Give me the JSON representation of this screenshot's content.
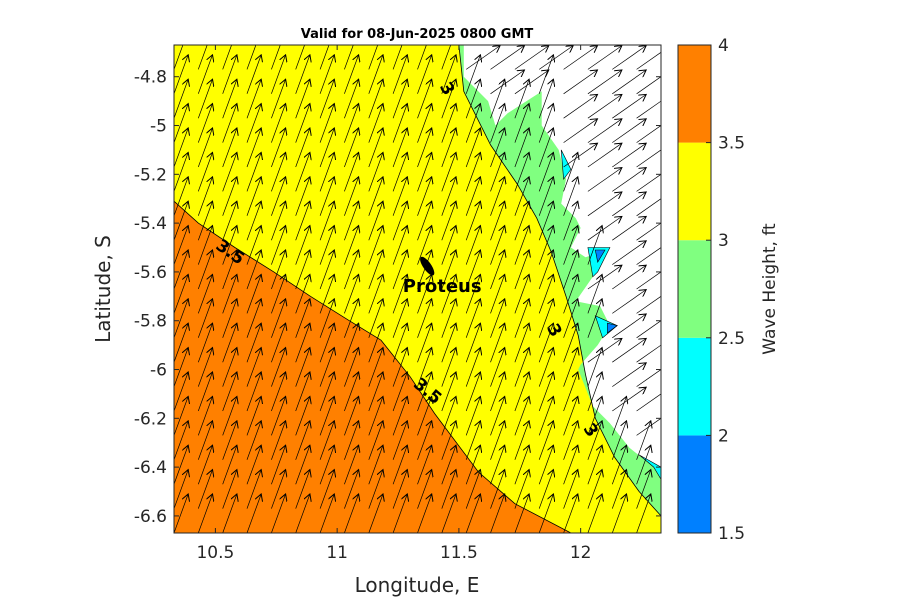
{
  "chart_data": {
    "type": "heatmap",
    "title": "Valid for 08-Jun-2025 0800 GMT",
    "xlabel": "Longitude, E",
    "ylabel": "Latitude, S",
    "xlim": [
      10.33,
      12.33
    ],
    "ylim": [
      -6.67,
      -4.67
    ],
    "x_ticks": [
      10.5,
      11,
      11.5,
      12
    ],
    "x_tick_labels": [
      "10.5",
      "11",
      "11.5",
      "12"
    ],
    "y_ticks": [
      -4.8,
      -5,
      -5.2,
      -5.4,
      -5.6,
      -5.8,
      -6,
      -6.2,
      -6.4,
      -6.6
    ],
    "y_tick_labels": [
      "-4.8",
      "-5",
      "-5.2",
      "-5.4",
      "-5.6",
      "-5.8",
      "-6",
      "-6.2",
      "-6.4",
      "-6.6"
    ],
    "colorbar": {
      "title": "Wave Height, ft",
      "levels": [
        1.5,
        2,
        2.5,
        3,
        3.5,
        4
      ],
      "tick_labels": [
        "1.5",
        "2",
        "2.5",
        "3",
        "3.5",
        "4"
      ],
      "colors": [
        "#0080ff",
        "#00ffff",
        "#80ff80",
        "#ffff00",
        "#ff8000"
      ]
    },
    "contours": [
      {
        "level": 3.5,
        "label": "3.5"
      },
      {
        "level": 3,
        "label": "3"
      }
    ],
    "contour_labels": [
      {
        "text": "3.5",
        "lon": 10.56,
        "lat": -5.52,
        "angle": 35
      },
      {
        "text": "3.5",
        "lon": 11.37,
        "lat": -6.09,
        "angle": 40
      },
      {
        "text": "3",
        "lon": 11.45,
        "lat": -4.85,
        "angle": 60
      },
      {
        "text": "3",
        "lon": 11.89,
        "lat": -5.84,
        "angle": 60
      },
      {
        "text": "3",
        "lon": 12.04,
        "lat": -6.25,
        "angle": 55
      }
    ],
    "station": {
      "name": "Proteus",
      "lon": 11.37,
      "lat": -5.65
    },
    "regions": [
      {
        "level_range": [
          3,
          3.5
        ],
        "color": "#ffff00",
        "boundary": [
          [
            10.33,
            -4.67
          ],
          [
            11.5,
            -4.67
          ],
          [
            11.52,
            -4.86
          ],
          [
            11.63,
            -5.08
          ],
          [
            11.74,
            -5.24
          ],
          [
            11.82,
            -5.38
          ],
          [
            11.88,
            -5.52
          ],
          [
            11.94,
            -5.7
          ],
          [
            11.99,
            -5.86
          ],
          [
            12.02,
            -6.02
          ],
          [
            12.06,
            -6.2
          ],
          [
            12.14,
            -6.36
          ],
          [
            12.24,
            -6.5
          ],
          [
            12.33,
            -6.6
          ],
          [
            12.33,
            -6.67
          ],
          [
            11.96,
            -6.67
          ],
          [
            11.73,
            -6.55
          ],
          [
            11.58,
            -6.42
          ],
          [
            11.4,
            -6.18
          ],
          [
            11.3,
            -6.03
          ],
          [
            11.18,
            -5.88
          ],
          [
            11.05,
            -5.8
          ],
          [
            10.89,
            -5.7
          ],
          [
            10.74,
            -5.6
          ],
          [
            10.58,
            -5.5
          ],
          [
            10.43,
            -5.4
          ],
          [
            10.33,
            -5.31
          ]
        ]
      },
      {
        "level_range": [
          3.5,
          4
        ],
        "color": "#ff8000",
        "boundary": [
          [
            10.33,
            -5.31
          ],
          [
            10.43,
            -5.4
          ],
          [
            10.58,
            -5.5
          ],
          [
            10.74,
            -5.6
          ],
          [
            10.89,
            -5.7
          ],
          [
            11.05,
            -5.8
          ],
          [
            11.18,
            -5.88
          ],
          [
            11.3,
            -6.03
          ],
          [
            11.4,
            -6.18
          ],
          [
            11.58,
            -6.42
          ],
          [
            11.73,
            -6.55
          ],
          [
            11.96,
            -6.67
          ],
          [
            10.33,
            -6.67
          ]
        ]
      },
      {
        "level_range": [
          2.5,
          3
        ],
        "color": "#80ff80",
        "boundary": [
          [
            11.5,
            -4.67
          ],
          [
            11.52,
            -4.67
          ],
          [
            11.52,
            -4.8
          ],
          [
            11.62,
            -4.9
          ],
          [
            11.65,
            -5.0
          ],
          [
            11.7,
            -4.95
          ],
          [
            11.84,
            -4.86
          ],
          [
            11.84,
            -5.0
          ],
          [
            11.91,
            -5.1
          ],
          [
            11.94,
            -5.22
          ],
          [
            11.92,
            -5.32
          ],
          [
            11.98,
            -5.38
          ],
          [
            12.0,
            -5.42
          ],
          [
            11.96,
            -5.5
          ],
          [
            12.02,
            -5.54
          ],
          [
            12.08,
            -5.52
          ],
          [
            12.05,
            -5.62
          ],
          [
            11.98,
            -5.72
          ],
          [
            12.08,
            -5.74
          ],
          [
            12.12,
            -5.82
          ],
          [
            12.07,
            -5.9
          ],
          [
            12.0,
            -5.98
          ],
          [
            11.99,
            -6.0
          ],
          [
            12.05,
            -6.15
          ],
          [
            12.12,
            -6.22
          ],
          [
            12.2,
            -6.32
          ],
          [
            12.3,
            -6.4
          ],
          [
            12.33,
            -6.45
          ],
          [
            12.33,
            -6.6
          ],
          [
            12.24,
            -6.5
          ],
          [
            12.14,
            -6.36
          ],
          [
            12.06,
            -6.2
          ],
          [
            12.02,
            -6.02
          ],
          [
            11.99,
            -5.86
          ],
          [
            11.94,
            -5.7
          ],
          [
            11.88,
            -5.52
          ],
          [
            11.82,
            -5.38
          ],
          [
            11.74,
            -5.24
          ],
          [
            11.63,
            -5.08
          ],
          [
            11.52,
            -4.86
          ]
        ]
      },
      {
        "level_range": [
          2,
          2.5
        ],
        "color": "#00ffff",
        "boundary": [
          [
            11.92,
            -5.1
          ],
          [
            11.96,
            -5.18
          ],
          [
            11.93,
            -5.22
          ]
        ]
      },
      {
        "level_range": [
          2,
          2.5
        ],
        "color": "#00ffff",
        "boundary": [
          [
            12.03,
            -5.5
          ],
          [
            12.12,
            -5.5
          ],
          [
            12.07,
            -5.6
          ],
          [
            12.05,
            -5.62
          ]
        ]
      },
      {
        "level_range": [
          2,
          2.5
        ],
        "color": "#00ffff",
        "boundary": [
          [
            12.06,
            -5.78
          ],
          [
            12.15,
            -5.82
          ],
          [
            12.09,
            -5.87
          ]
        ]
      },
      {
        "level_range": [
          2,
          2.5
        ],
        "color": "#00ffff",
        "boundary": [
          [
            12.24,
            -6.35
          ],
          [
            12.33,
            -6.4
          ],
          [
            12.33,
            -6.45
          ],
          [
            12.3,
            -6.4
          ]
        ]
      },
      {
        "level_range": [
          1.5,
          2
        ],
        "color": "#0080ff",
        "boundary": [
          [
            12.06,
            -5.51
          ],
          [
            12.1,
            -5.51
          ],
          [
            12.07,
            -5.56
          ]
        ]
      },
      {
        "level_range": [
          1.5,
          2
        ],
        "color": "#0080ff",
        "boundary": [
          [
            12.11,
            -5.81
          ],
          [
            12.15,
            -5.82
          ],
          [
            12.11,
            -5.85
          ]
        ]
      }
    ],
    "arrows": {
      "grid_lon_start": 10.33,
      "grid_lat_start": -6.67,
      "grid_step": 0.1,
      "direction_deg_from_north": 20,
      "offshore_direction_deg_from_north": 55,
      "length_deg": 0.17
    }
  }
}
